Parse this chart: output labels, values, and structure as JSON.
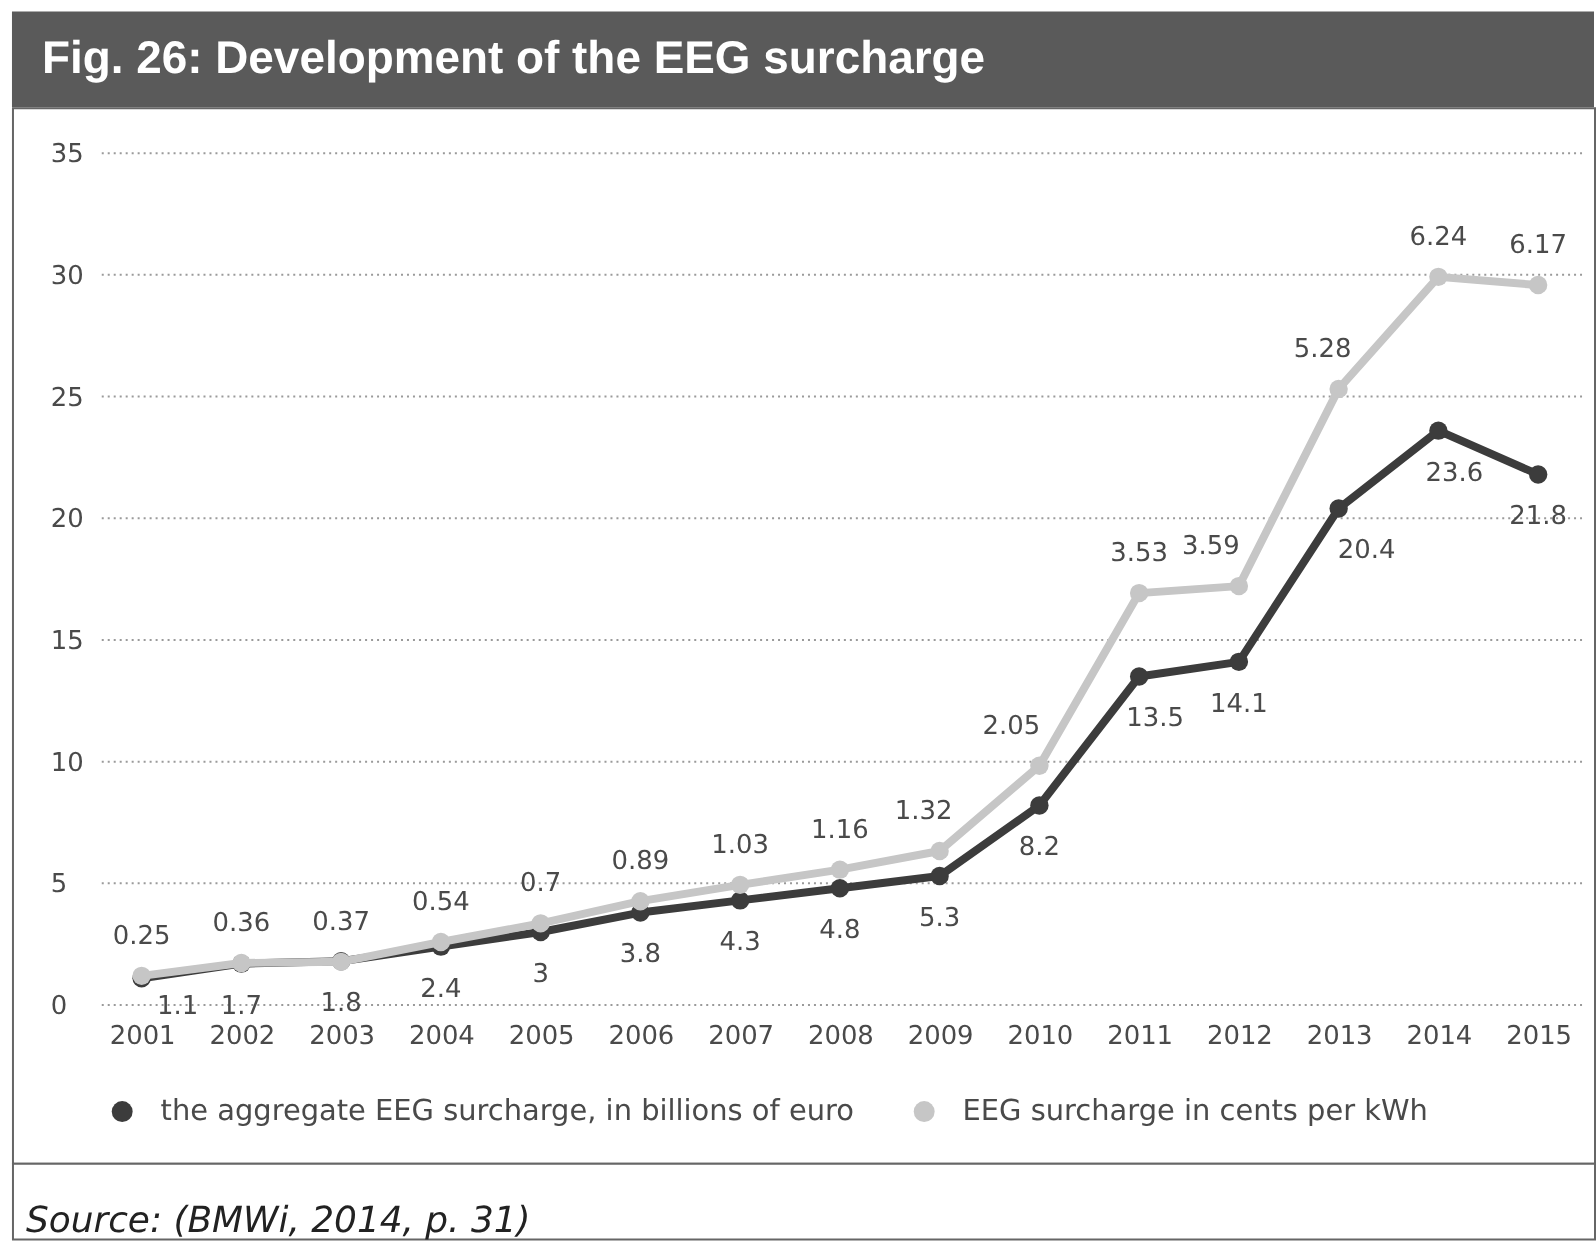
{
  "chart_data": {
    "type": "line",
    "title": "Fig. 26: Development of the EEG surcharge",
    "categories": [
      "2001",
      "2002",
      "2003",
      "2004",
      "2005",
      "2006",
      "2007",
      "2008",
      "2009",
      "2010",
      "2011",
      "2012",
      "2013",
      "2014",
      "2015"
    ],
    "series": [
      {
        "name": "the aggregate EEG surcharge, in billions of euro",
        "color": "#3c3c3c",
        "values": [
          1.1,
          1.7,
          1.8,
          2.4,
          3,
          3.8,
          4.3,
          4.8,
          5.3,
          8.2,
          13.5,
          14.1,
          20.4,
          23.6,
          21.8
        ]
      },
      {
        "name": "EEG surcharge in cents per kWh",
        "color": "#c6c6c6",
        "axis": "y2",
        "values": [
          0.25,
          0.36,
          0.37,
          0.54,
          0.7,
          0.89,
          1.03,
          1.16,
          1.32,
          2.05,
          3.53,
          3.59,
          5.28,
          6.24,
          6.17
        ]
      }
    ],
    "ylim": [
      0,
      35
    ],
    "yticks": [
      0,
      5,
      10,
      15,
      20,
      25,
      30,
      35
    ],
    "y2lim": [
      0,
      7.3
    ],
    "grid": "y",
    "legend": "bottom",
    "marker": "circle",
    "line_style": "solid",
    "data_labels": true,
    "annotations": [
      "Source: (BMWi, 2014, p. 31)"
    ]
  }
}
